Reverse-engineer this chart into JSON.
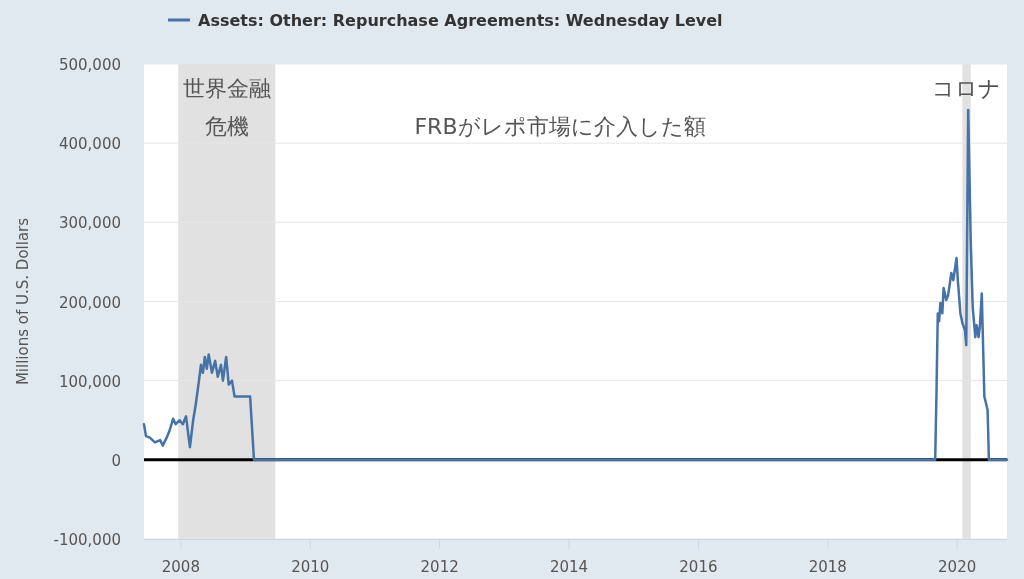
{
  "chart_data": {
    "type": "line",
    "ylabel": "Millions of U.S. Dollars",
    "xlim": [
      2007.43,
      2020.77
    ],
    "xticks": [
      2008,
      2010,
      2012,
      2014,
      2016,
      2018,
      2020
    ],
    "ylim": [
      -100000,
      500000
    ],
    "yticks": [
      {
        "value": -100000,
        "label": "-100,000"
      },
      0,
      {
        "value": 100000,
        "label": "100,000"
      },
      {
        "value": 200000,
        "label": "200,000"
      },
      {
        "value": 300000,
        "label": "300,000"
      },
      {
        "value": 400000,
        "label": "400,000"
      },
      {
        "value": 500000,
        "label": "500,000"
      }
    ],
    "grid": "y",
    "legend": "top left",
    "bands": [
      {
        "axis": "x",
        "from": 2007.96,
        "to": 2009.46,
        "label": "世界金融危機",
        "color": "#e1e1e1"
      },
      {
        "axis": "x",
        "from": 2020.08,
        "to": 2020.21,
        "label": "コロナ",
        "color": "#e1e1e1"
      }
    ],
    "ref_lines": [
      {
        "axis": "y",
        "value": 0,
        "color": "#000000"
      }
    ],
    "annotations": [
      "FRBがレポ市場に介入した額"
    ],
    "series": [
      {
        "name": "Assets: Other: Repurchase Agreements: Wednesday Level",
        "color": "#4572a7",
        "x": [
          2007.43,
          2007.46,
          2007.52,
          2007.6,
          2007.68,
          2007.72,
          2007.78,
          2007.83,
          2007.88,
          2007.92,
          2007.98,
          2008.03,
          2008.08,
          2008.11,
          2008.14,
          2008.19,
          2008.23,
          2008.28,
          2008.31,
          2008.34,
          2008.37,
          2008.4,
          2008.43,
          2008.48,
          2008.53,
          2008.57,
          2008.62,
          2008.65,
          2008.7,
          2008.74,
          2008.79,
          2008.83,
          2009.07,
          2009.13,
          2019.66,
          2019.68,
          2019.7,
          2019.72,
          2019.74,
          2019.77,
          2019.79,
          2019.81,
          2019.83,
          2019.86,
          2019.91,
          2019.94,
          2019.99,
          2020.01,
          2020.05,
          2020.08,
          2020.12,
          2020.14,
          2020.17,
          2020.21,
          2020.24,
          2020.28,
          2020.3,
          2020.33,
          2020.35,
          2020.38,
          2020.42,
          2020.47,
          2020.49,
          2020.77
        ],
        "values": [
          45000,
          30000,
          28000,
          22000,
          25000,
          18000,
          28000,
          38000,
          52000,
          45000,
          50000,
          45000,
          55000,
          35000,
          16000,
          50000,
          70000,
          100000,
          120000,
          110000,
          130000,
          115000,
          133000,
          110000,
          125000,
          105000,
          120000,
          100000,
          130000,
          95000,
          100000,
          80000,
          80000,
          0,
          0,
          85000,
          185000,
          175000,
          198000,
          185000,
          217000,
          210000,
          202000,
          208000,
          236000,
          227000,
          255000,
          227000,
          185000,
          173000,
          164000,
          145000,
          442000,
          274000,
          193000,
          155000,
          170000,
          155000,
          168000,
          210000,
          80000,
          63000,
          0,
          0
        ]
      }
    ]
  }
}
